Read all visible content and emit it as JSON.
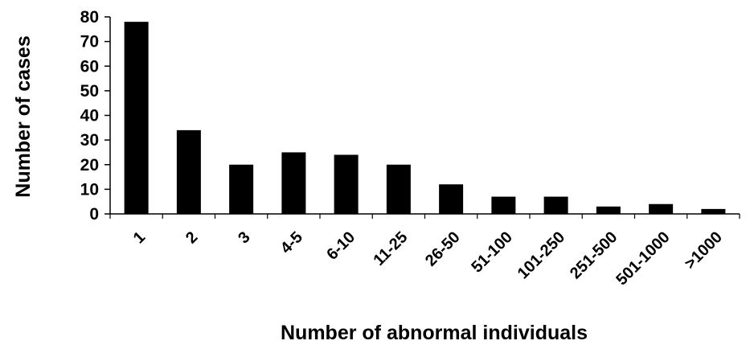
{
  "chart_data": {
    "type": "bar",
    "title": "",
    "xlabel": "Number of abnormal individuals",
    "ylabel": "Number of cases",
    "ylim": [
      0,
      80
    ],
    "yticks": [
      0,
      10,
      20,
      30,
      40,
      50,
      60,
      70,
      80
    ],
    "categories": [
      "1",
      "2",
      "3",
      "4-5",
      "6-10",
      "11-25",
      "26-50",
      "51-100",
      "101-250",
      "251-500",
      "501-1000",
      ">1000"
    ],
    "values": [
      78,
      34,
      20,
      25,
      24,
      20,
      12,
      7,
      7,
      3,
      4,
      2
    ],
    "bar_color": "#000000",
    "grid": false,
    "legend": "none"
  }
}
